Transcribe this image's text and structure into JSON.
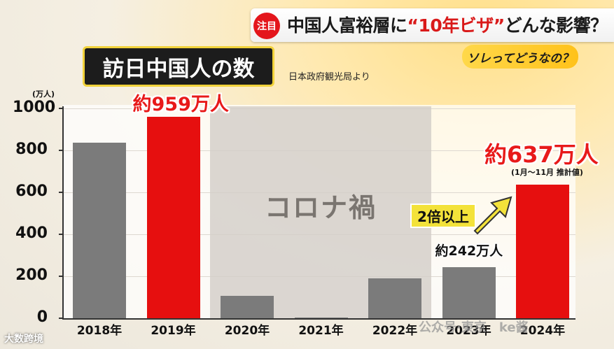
{
  "header": {
    "badge": "注目",
    "headline_prefix": "中国人富裕層に",
    "headline_red": "“10年ビザ”",
    "headline_suffix": "どんな影響？",
    "tag": "ソレってどうなの？"
  },
  "chart_title": "訪日中国人の数",
  "source": "日本政府観光局より",
  "annotations": {
    "bar_2019": "約959万人",
    "bar_2023": "約242万人",
    "bar_2024": "約637万人",
    "note_2024": "(1月～11月 推計値)",
    "covid_period": "コロナ禍",
    "growth": "2倍以上"
  },
  "colors": {
    "highlight": "#e60f0f",
    "normal": "#7b7b7b",
    "accent_yellow": "#f3e23a"
  },
  "icons": {
    "growth_arrow": "up-right-arrow-icon"
  },
  "watermark": {
    "left": "大数跨境",
    "right": "公众号·東京　ke酱"
  },
  "chart_data": {
    "type": "bar",
    "title": "訪日中国人の数",
    "ylabel": "(万人)",
    "xlabel": "",
    "ylim": [
      0,
      1000
    ],
    "yticks": [
      0,
      200,
      400,
      600,
      800,
      1000
    ],
    "categories": [
      "2018年",
      "2019年",
      "2020年",
      "2021年",
      "2022年",
      "2023年",
      "2024年"
    ],
    "values": [
      838,
      959,
      107,
      4,
      189,
      242,
      637
    ],
    "highlighted": [
      false,
      true,
      false,
      false,
      false,
      false,
      true
    ],
    "shaded_region": {
      "label": "コロナ禍",
      "from": "2020年",
      "to": "2022年"
    },
    "grid": true,
    "legend": "none"
  }
}
